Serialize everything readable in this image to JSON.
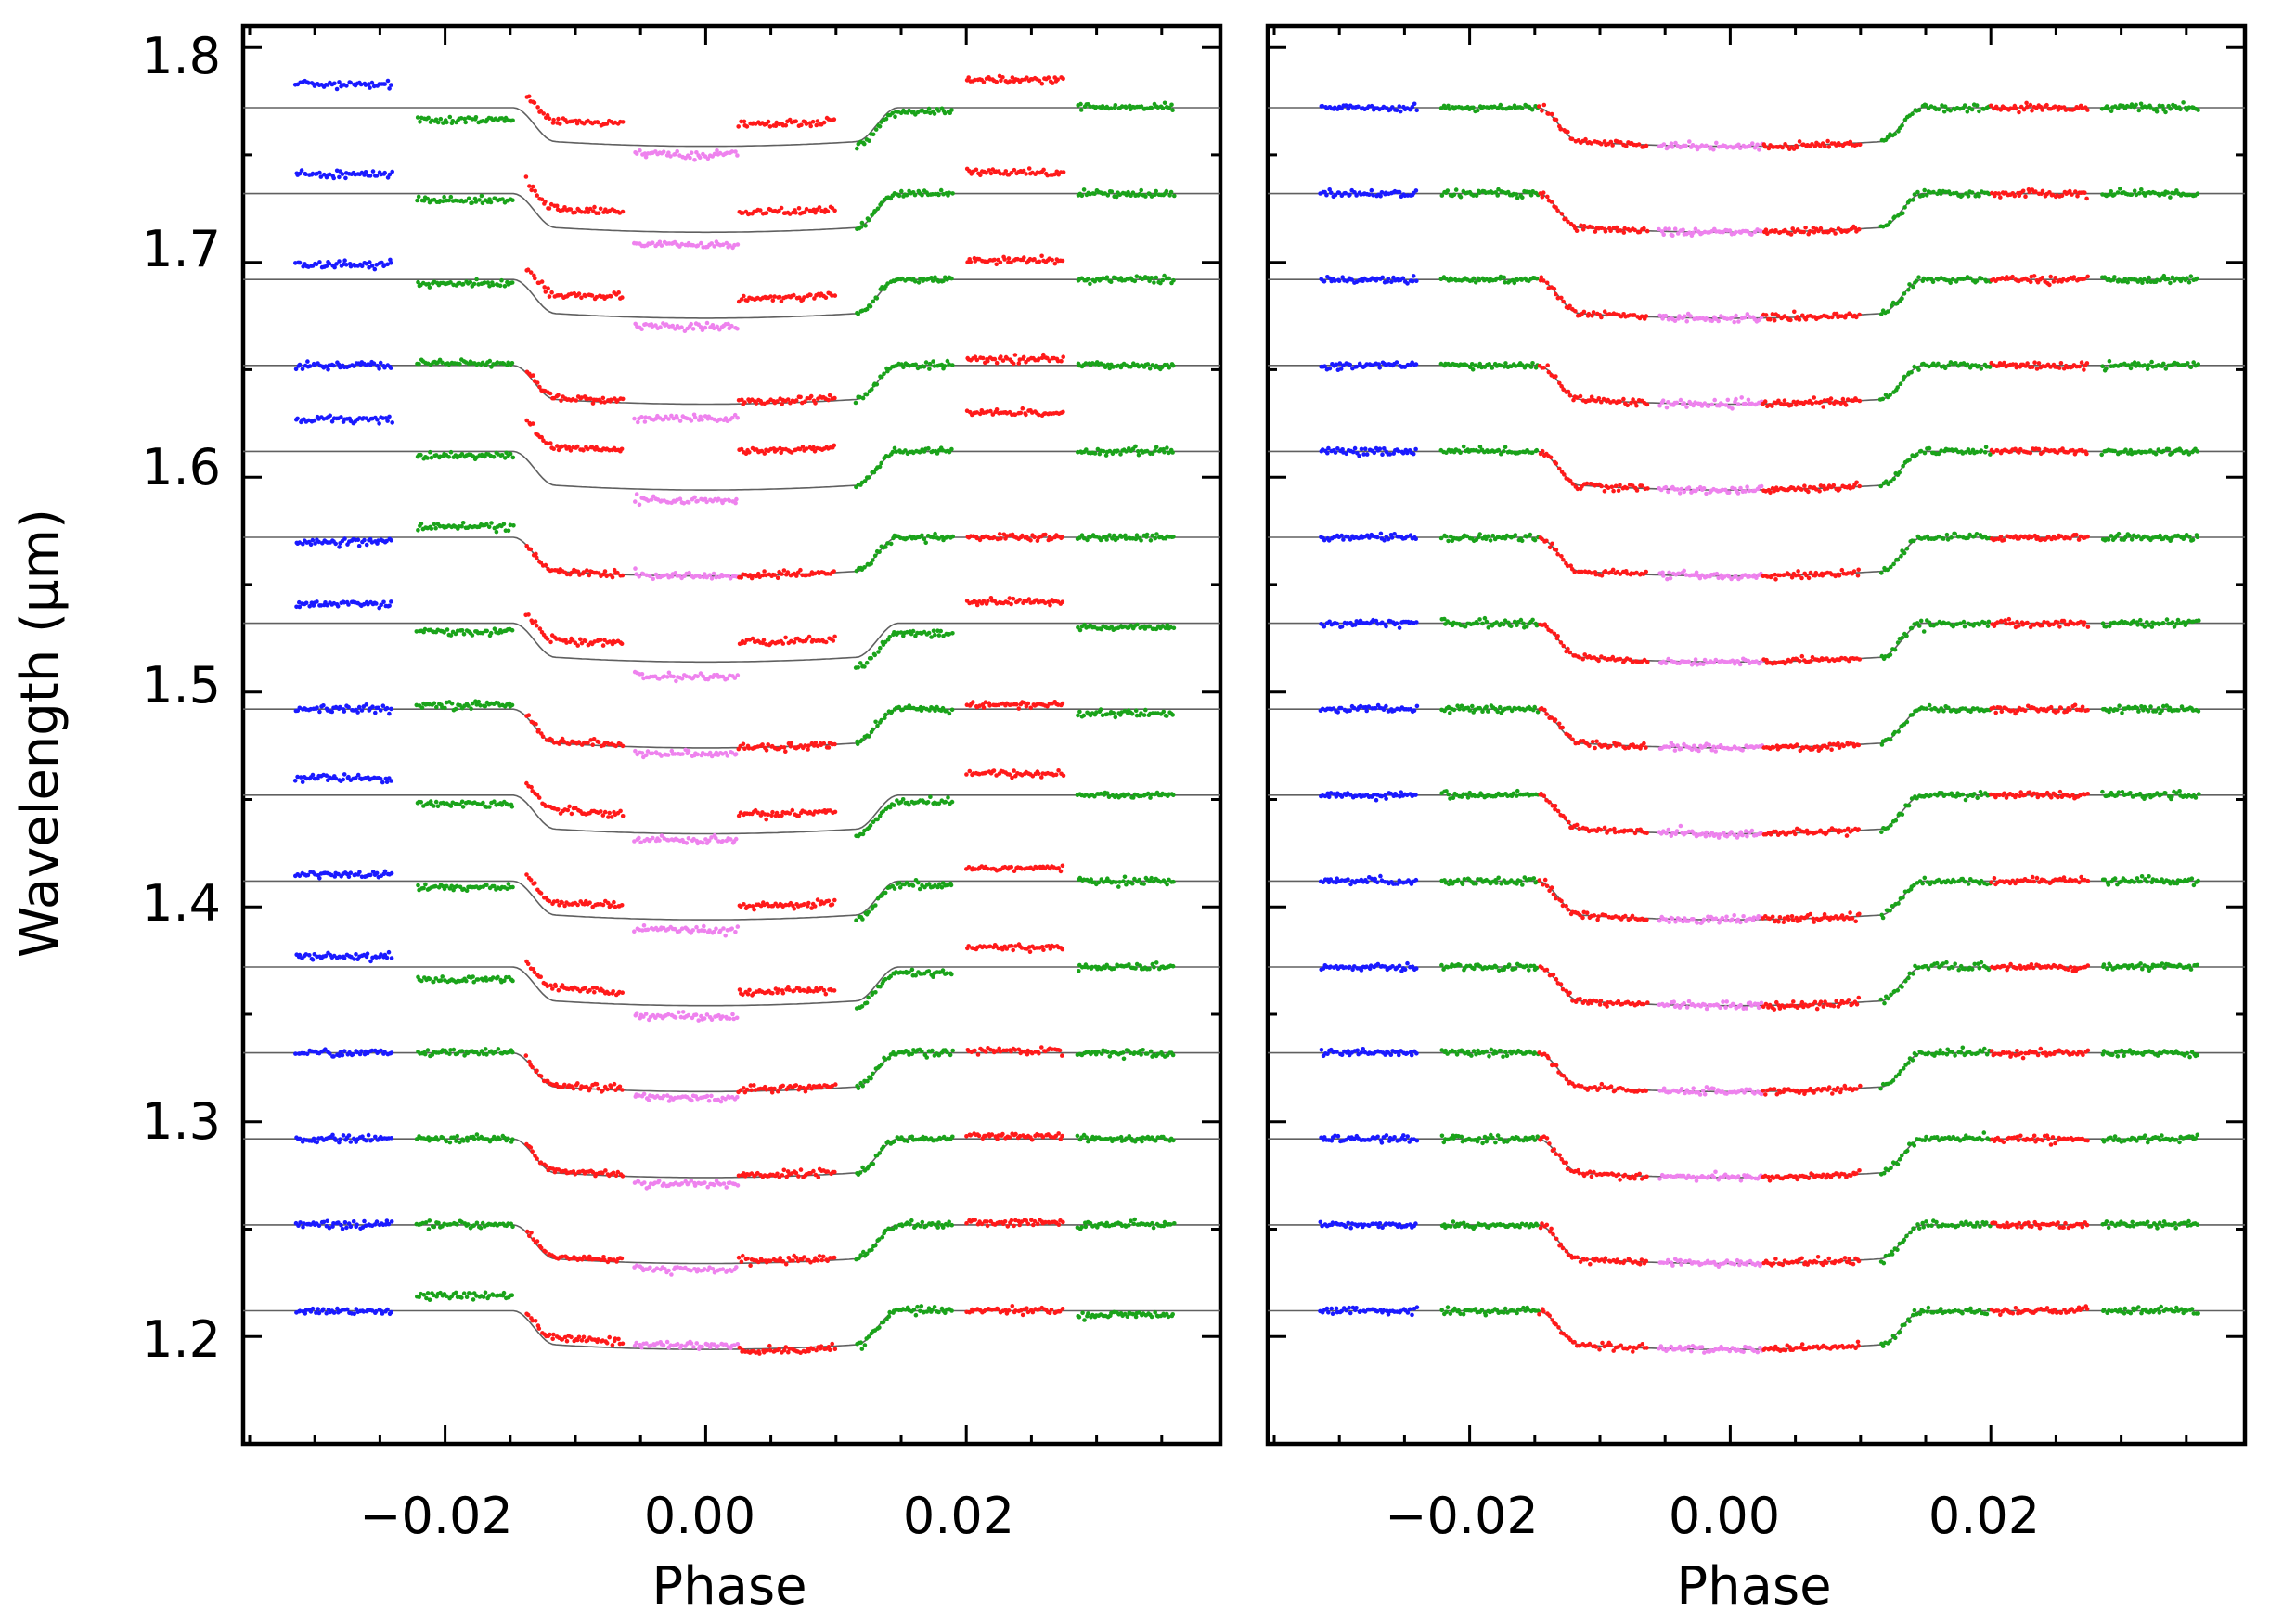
{
  "chart_data": [
    {
      "type": "scatter",
      "panel": "left",
      "title": "",
      "xlabel": "Phase",
      "ylabel": "Wavelength (μm)",
      "xlim": [
        -0.0355,
        0.0395
      ],
      "ylim": [
        1.15,
        1.81
      ],
      "xticks": [
        -0.02,
        0.0,
        0.02
      ],
      "xtick_labels": [
        "−0.02",
        "0.00",
        "0.02"
      ],
      "yticks": [
        1.2,
        1.3,
        1.4,
        1.5,
        1.6,
        1.7,
        1.8
      ],
      "ytick_labels": [
        "1.2",
        "1.3",
        "1.4",
        "1.5",
        "1.6",
        "1.7",
        "1.8"
      ],
      "model": {
        "transit_depth": 0.018,
        "ingress_start": -0.0148,
        "full_start": -0.0115,
        "full_end": 0.0115,
        "egress_end": 0.0148
      },
      "baselines": [
        1.212,
        1.252,
        1.292,
        1.332,
        1.372,
        1.412,
        1.452,
        1.492,
        1.532,
        1.572,
        1.612,
        1.652,
        1.692,
        1.732,
        1.772
      ],
      "segments": [
        {
          "color": "blue",
          "x_range": [
            -0.0315,
            -0.024
          ]
        },
        {
          "color": "green",
          "x_range": [
            -0.0222,
            -0.0147
          ]
        },
        {
          "color": "red",
          "x_range": [
            -0.0138,
            -0.0063
          ]
        },
        {
          "color": "violet",
          "x_range": [
            -0.0055,
            0.0025
          ]
        },
        {
          "color": "red",
          "x_range": [
            0.0025,
            0.01
          ]
        },
        {
          "color": "green",
          "x_range": [
            0.0115,
            0.019
          ]
        },
        {
          "color": "red",
          "x_range": [
            0.02,
            0.0275
          ]
        },
        {
          "color": "green",
          "x_range": [
            0.0285,
            0.036
          ]
        }
      ],
      "offsets": [
        [
          0.0,
          0.007,
          0.003,
          0.002,
          -0.001,
          0.0,
          0.0,
          -0.002
        ],
        [
          0.0,
          0.0,
          0.001,
          -0.003,
          0.001,
          0.0,
          0.001,
          0.0
        ],
        [
          0.0,
          0.0,
          0.001,
          -0.003,
          0.001,
          0.0,
          0.001,
          0.0
        ],
        [
          0.0,
          0.0,
          0.001,
          -0.003,
          0.001,
          0.0,
          0.001,
          0.0
        ],
        [
          0.005,
          -0.006,
          0.006,
          -0.005,
          0.006,
          -0.003,
          0.009,
          0.0
        ],
        [
          0.003,
          -0.003,
          0.006,
          -0.005,
          0.006,
          -0.002,
          0.006,
          0.0
        ],
        [
          0.008,
          -0.004,
          0.009,
          -0.003,
          0.009,
          -0.003,
          0.01,
          0.0
        ],
        [
          0.0,
          0.002,
          0.001,
          -0.003,
          0.0,
          0.0,
          0.002,
          -0.002
        ],
        [
          0.009,
          -0.004,
          0.008,
          -0.007,
          0.009,
          -0.005,
          0.01,
          -0.002
        ],
        [
          -0.002,
          0.005,
          0.0,
          0.0,
          0.0,
          0.0,
          0.0,
          0.0
        ],
        [
          0.015,
          -0.002,
          0.018,
          -0.005,
          0.018,
          0.0,
          0.018,
          0.0
        ],
        [
          0.0,
          0.001,
          0.001,
          -0.007,
          0.001,
          0.0,
          0.003,
          0.0
        ],
        [
          0.007,
          -0.002,
          0.009,
          -0.004,
          0.009,
          0.0,
          0.009,
          0.0
        ],
        [
          0.009,
          -0.003,
          0.009,
          -0.006,
          0.009,
          0.0,
          0.01,
          0.0
        ],
        [
          0.011,
          -0.006,
          0.01,
          -0.004,
          0.01,
          -0.002,
          0.013,
          0.0
        ]
      ]
    },
    {
      "type": "scatter",
      "panel": "right",
      "title": "",
      "xlabel": "Phase",
      "ylabel": "",
      "xlim": [
        -0.0355,
        0.0395
      ],
      "ylim": [
        1.15,
        1.81
      ],
      "xticks": [
        -0.02,
        0.0,
        0.02
      ],
      "xtick_labels": [
        "−0.02",
        "0.00",
        "0.02"
      ],
      "yticks": [
        1.2,
        1.3,
        1.4,
        1.5,
        1.6,
        1.7,
        1.8
      ],
      "ytick_labels": [],
      "model": {
        "transit_depth": 0.018,
        "ingress_start": -0.0148,
        "full_start": -0.0115,
        "full_end": 0.0115,
        "egress_end": 0.0148
      },
      "baselines": [
        1.212,
        1.252,
        1.292,
        1.332,
        1.372,
        1.412,
        1.452,
        1.492,
        1.532,
        1.572,
        1.612,
        1.652,
        1.692,
        1.732,
        1.772
      ],
      "segments": [
        {
          "color": "blue",
          "x_range": [
            -0.0315,
            -0.024
          ]
        },
        {
          "color": "green",
          "x_range": [
            -0.0222,
            -0.0147
          ]
        },
        {
          "color": "red",
          "x_range": [
            -0.0147,
            -0.0063
          ]
        },
        {
          "color": "violet",
          "x_range": [
            -0.0055,
            0.0025
          ]
        },
        {
          "color": "red",
          "x_range": [
            0.0025,
            0.01
          ]
        },
        {
          "color": "green",
          "x_range": [
            0.0115,
            0.02
          ]
        },
        {
          "color": "red",
          "x_range": [
            0.02,
            0.0275
          ]
        },
        {
          "color": "green",
          "x_range": [
            0.0285,
            0.036
          ]
        }
      ]
    }
  ],
  "colors": {
    "blue": "#1a1aff",
    "green": "#1aa31a",
    "red": "#ff1a1a",
    "violet": "#ee82ee",
    "model": "#606060",
    "axis": "#000000"
  }
}
